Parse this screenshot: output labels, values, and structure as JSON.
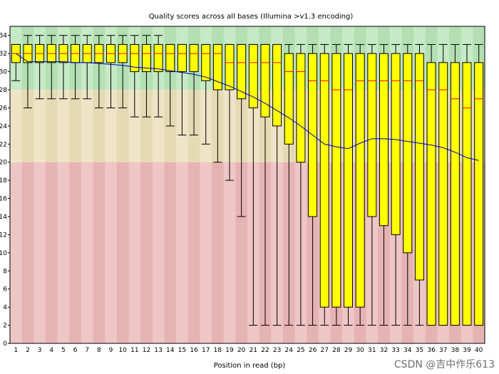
{
  "chart_data": {
    "type": "boxplot",
    "title": "Quality scores across all bases (Illumina >v1.3 encoding)",
    "xlabel": "Position in read (bp)",
    "ylabel": "",
    "ylim": [
      0,
      35
    ],
    "yticks": [
      0,
      2,
      4,
      6,
      8,
      10,
      12,
      14,
      16,
      18,
      20,
      22,
      24,
      26,
      28,
      30,
      32,
      34
    ],
    "bands": [
      {
        "name": "good",
        "from": 28,
        "to": 35,
        "color_a": "#c6e9c6",
        "color_b": "#b3dfb3"
      },
      {
        "name": "reasonable",
        "from": 20,
        "to": 28,
        "color_a": "#eee4c6",
        "color_b": "#e6dab5"
      },
      {
        "name": "poor",
        "from": 0,
        "to": 20,
        "color_a": "#efc6c6",
        "color_b": "#e6b3b3"
      }
    ],
    "colors": {
      "box": "#ffff00",
      "box_stroke": "#000000",
      "median": "#ff0000",
      "mean_line": "#0000aa",
      "whisker": "#000000"
    },
    "categories": [
      "1",
      "2",
      "3",
      "4",
      "5",
      "6",
      "7",
      "8",
      "9",
      "10",
      "11",
      "12",
      "13",
      "14",
      "15",
      "16",
      "17",
      "18",
      "19",
      "20",
      "21",
      "22",
      "23",
      "24",
      "25",
      "26",
      "27",
      "28",
      "29",
      "30",
      "31",
      "32",
      "33",
      "34",
      "35",
      "36",
      "37",
      "38",
      "39",
      "40"
    ],
    "boxes": [
      {
        "q1": 31,
        "median": 32,
        "q3": 33,
        "low": 29,
        "high": 33
      },
      {
        "q1": 31,
        "median": 32,
        "q3": 33,
        "low": 26,
        "high": 34
      },
      {
        "q1": 31,
        "median": 32,
        "q3": 33,
        "low": 27,
        "high": 34
      },
      {
        "q1": 31,
        "median": 32,
        "q3": 33,
        "low": 27,
        "high": 34
      },
      {
        "q1": 31,
        "median": 32,
        "q3": 33,
        "low": 27,
        "high": 34
      },
      {
        "q1": 31,
        "median": 32,
        "q3": 33,
        "low": 27,
        "high": 34
      },
      {
        "q1": 31,
        "median": 32,
        "q3": 33,
        "low": 27,
        "high": 34
      },
      {
        "q1": 31,
        "median": 32,
        "q3": 33,
        "low": 26,
        "high": 34
      },
      {
        "q1": 31,
        "median": 32,
        "q3": 33,
        "low": 26,
        "high": 34
      },
      {
        "q1": 31,
        "median": 32,
        "q3": 33,
        "low": 26,
        "high": 34
      },
      {
        "q1": 30,
        "median": 32,
        "q3": 33,
        "low": 25,
        "high": 34
      },
      {
        "q1": 30,
        "median": 32,
        "q3": 33,
        "low": 25,
        "high": 34
      },
      {
        "q1": 30,
        "median": 32,
        "q3": 33,
        "low": 25,
        "high": 34
      },
      {
        "q1": 30,
        "median": 32,
        "q3": 33,
        "low": 24,
        "high": 33
      },
      {
        "q1": 30,
        "median": 32,
        "q3": 33,
        "low": 23,
        "high": 33
      },
      {
        "q1": 30,
        "median": 32,
        "q3": 33,
        "low": 23,
        "high": 33
      },
      {
        "q1": 29,
        "median": 32,
        "q3": 33,
        "low": 22,
        "high": 33
      },
      {
        "q1": 28,
        "median": 32,
        "q3": 33,
        "low": 20,
        "high": 33
      },
      {
        "q1": 28,
        "median": 31,
        "q3": 33,
        "low": 18,
        "high": 33
      },
      {
        "q1": 27,
        "median": 31,
        "q3": 33,
        "low": 14,
        "high": 33
      },
      {
        "q1": 26,
        "median": 31,
        "q3": 33,
        "low": 2,
        "high": 33
      },
      {
        "q1": 25,
        "median": 31,
        "q3": 33,
        "low": 2,
        "high": 33
      },
      {
        "q1": 24,
        "median": 31,
        "q3": 33,
        "low": 2,
        "high": 33
      },
      {
        "q1": 22,
        "median": 30,
        "q3": 32,
        "low": 2,
        "high": 33
      },
      {
        "q1": 20,
        "median": 30,
        "q3": 32,
        "low": 2,
        "high": 33
      },
      {
        "q1": 14,
        "median": 29,
        "q3": 32,
        "low": 2,
        "high": 33
      },
      {
        "q1": 4,
        "median": 29,
        "q3": 32,
        "low": 2,
        "high": 33
      },
      {
        "q1": 4,
        "median": 28,
        "q3": 32,
        "low": 2,
        "high": 33
      },
      {
        "q1": 4,
        "median": 28,
        "q3": 32,
        "low": 2,
        "high": 33
      },
      {
        "q1": 4,
        "median": 29,
        "q3": 32,
        "low": 2,
        "high": 33
      },
      {
        "q1": 14,
        "median": 29,
        "q3": 32,
        "low": 2,
        "high": 33
      },
      {
        "q1": 13,
        "median": 29,
        "q3": 32,
        "low": 2,
        "high": 33
      },
      {
        "q1": 12,
        "median": 29,
        "q3": 32,
        "low": 2,
        "high": 33
      },
      {
        "q1": 10,
        "median": 29,
        "q3": 32,
        "low": 2,
        "high": 33
      },
      {
        "q1": 7,
        "median": 29,
        "q3": 32,
        "low": 2,
        "high": 33
      },
      {
        "q1": 2,
        "median": 28,
        "q3": 31,
        "low": 2,
        "high": 33
      },
      {
        "q1": 2,
        "median": 28,
        "q3": 31,
        "low": 2,
        "high": 33
      },
      {
        "q1": 2,
        "median": 27,
        "q3": 31,
        "low": 2,
        "high": 33
      },
      {
        "q1": 2,
        "median": 26,
        "q3": 31,
        "low": 2,
        "high": 33
      },
      {
        "q1": 2,
        "median": 27,
        "q3": 31,
        "low": 2,
        "high": 33
      }
    ],
    "mean": [
      32.0,
      31.1,
      31.1,
      31.1,
      31.1,
      31.0,
      31.0,
      30.9,
      30.8,
      30.7,
      30.5,
      30.4,
      30.3,
      30.1,
      29.9,
      29.7,
      29.4,
      28.9,
      28.4,
      27.8,
      27.2,
      26.5,
      25.7,
      24.9,
      24.0,
      23.0,
      22.0,
      21.7,
      21.5,
      22.1,
      22.6,
      22.6,
      22.5,
      22.3,
      22.1,
      21.9,
      21.6,
      21.1,
      20.5,
      20.2
    ]
  },
  "watermark": "CSDN @吉中作乐613"
}
